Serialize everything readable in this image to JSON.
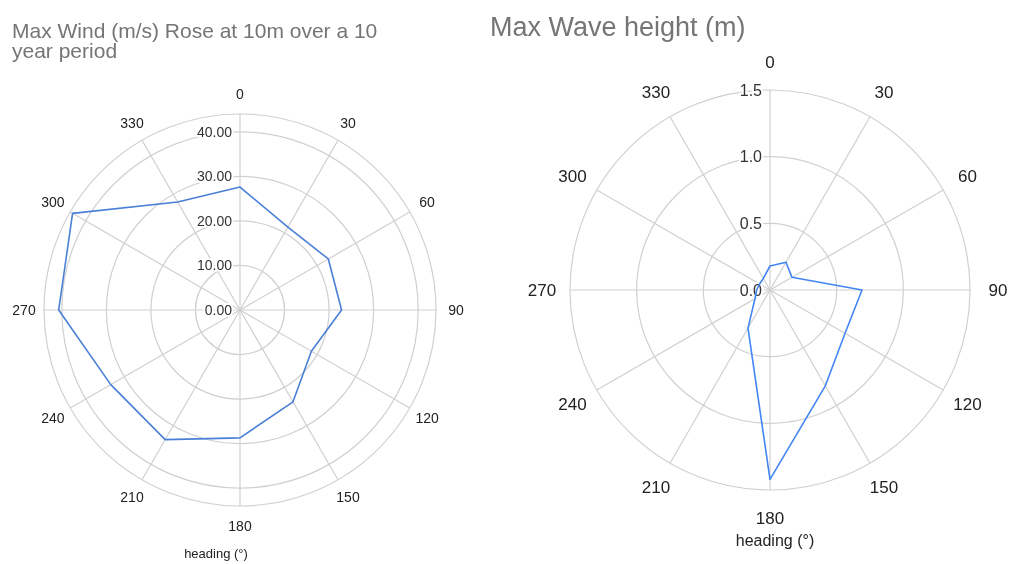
{
  "chart_data": [
    {
      "type": "radar",
      "title": "Max Wind (m/s) Rose at 10m over a 10 year period",
      "xlabel": "heading (°)",
      "categories": [
        "0",
        "30",
        "60",
        "90",
        "120",
        "150",
        "180",
        "210",
        "240",
        "270",
        "300",
        "330"
      ],
      "series": [
        {
          "color": "#4a7fd6",
          "values": [
            27.6,
            21.5,
            22.9,
            22.8,
            18.5,
            23.8,
            28.7,
            33.6,
            33.5,
            40.7,
            43.4,
            28.0
          ]
        }
      ],
      "ylim": [
        0,
        44
      ],
      "yticks": [
        {
          "value": 0,
          "label": "0.00"
        },
        {
          "value": 10,
          "label": "10.00"
        },
        {
          "value": 20,
          "label": "20.00"
        },
        {
          "value": 30,
          "label": "30.00"
        },
        {
          "value": 40,
          "label": "40.00"
        }
      ],
      "grid": true
    },
    {
      "type": "radar",
      "title": "Max Wave height (m)",
      "xlabel": "heading (°)",
      "categories": [
        "0",
        "30",
        "60",
        "90",
        "120",
        "150",
        "180",
        "210",
        "240",
        "270",
        "300",
        "330"
      ],
      "series": [
        {
          "color": "#4285f4",
          "values": [
            0.18,
            0.24,
            0.19,
            0.69,
            0.65,
            0.83,
            1.42,
            0.33,
            0.13,
            0.1,
            0.09,
            0.1
          ]
        }
      ],
      "ylim": [
        0,
        1.5
      ],
      "yticks": [
        {
          "value": 0,
          "label": "0.0"
        },
        {
          "value": 0.5,
          "label": "0.5"
        },
        {
          "value": 1,
          "label": "1.0"
        },
        {
          "value": 1.5,
          "label": "1.5"
        }
      ],
      "grid": true
    }
  ]
}
